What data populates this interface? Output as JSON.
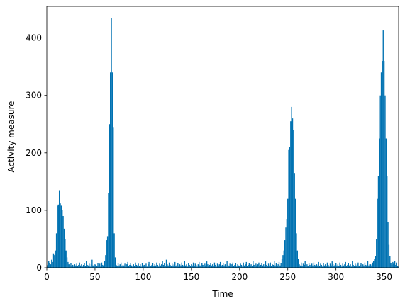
{
  "chart_data": {
    "type": "bar",
    "xlabel": "Time",
    "ylabel": "Activity measure",
    "color": "#0072b2",
    "xlim": [
      0,
      365
    ],
    "ylim": [
      0,
      455
    ],
    "xticks": [
      0,
      50,
      100,
      150,
      200,
      250,
      300,
      350
    ],
    "yticks": [
      0,
      100,
      200,
      300,
      400
    ],
    "x": [
      0,
      1,
      2,
      3,
      4,
      5,
      6,
      7,
      8,
      9,
      10,
      11,
      12,
      13,
      14,
      15,
      16,
      17,
      18,
      19,
      20,
      21,
      22,
      23,
      24,
      25,
      26,
      27,
      28,
      29,
      30,
      31,
      32,
      33,
      34,
      35,
      36,
      37,
      38,
      39,
      40,
      41,
      42,
      43,
      44,
      45,
      46,
      47,
      48,
      49,
      50,
      51,
      52,
      53,
      54,
      55,
      56,
      57,
      58,
      59,
      60,
      61,
      62,
      63,
      64,
      65,
      66,
      67,
      68,
      69,
      70,
      71,
      72,
      73,
      74,
      75,
      76,
      77,
      78,
      79,
      80,
      81,
      82,
      83,
      84,
      85,
      86,
      87,
      88,
      89,
      90,
      91,
      92,
      93,
      94,
      95,
      96,
      97,
      98,
      99,
      100,
      101,
      102,
      103,
      104,
      105,
      106,
      107,
      108,
      109,
      110,
      111,
      112,
      113,
      114,
      115,
      116,
      117,
      118,
      119,
      120,
      121,
      122,
      123,
      124,
      125,
      126,
      127,
      128,
      129,
      130,
      131,
      132,
      133,
      134,
      135,
      136,
      137,
      138,
      139,
      140,
      141,
      142,
      143,
      144,
      145,
      146,
      147,
      148,
      149,
      150,
      151,
      152,
      153,
      154,
      155,
      156,
      157,
      158,
      159,
      160,
      161,
      162,
      163,
      164,
      165,
      166,
      167,
      168,
      169,
      170,
      171,
      172,
      173,
      174,
      175,
      176,
      177,
      178,
      179,
      180,
      181,
      182,
      183,
      184,
      185,
      186,
      187,
      188,
      189,
      190,
      191,
      192,
      193,
      194,
      195,
      196,
      197,
      198,
      199,
      200,
      201,
      202,
      203,
      204,
      205,
      206,
      207,
      208,
      209,
      210,
      211,
      212,
      213,
      214,
      215,
      216,
      217,
      218,
      219,
      220,
      221,
      222,
      223,
      224,
      225,
      226,
      227,
      228,
      229,
      230,
      231,
      232,
      233,
      234,
      235,
      236,
      237,
      238,
      239,
      240,
      241,
      242,
      243,
      244,
      245,
      246,
      247,
      248,
      249,
      250,
      251,
      252,
      253,
      254,
      255,
      256,
      257,
      258,
      259,
      260,
      261,
      262,
      263,
      264,
      265,
      266,
      267,
      268,
      269,
      270,
      271,
      272,
      273,
      274,
      275,
      276,
      277,
      278,
      279,
      280,
      281,
      282,
      283,
      284,
      285,
      286,
      287,
      288,
      289,
      290,
      291,
      292,
      293,
      294,
      295,
      296,
      297,
      298,
      299,
      300,
      301,
      302,
      303,
      304,
      305,
      306,
      307,
      308,
      309,
      310,
      311,
      312,
      313,
      314,
      315,
      316,
      317,
      318,
      319,
      320,
      321,
      322,
      323,
      324,
      325,
      326,
      327,
      328,
      329,
      330,
      331,
      332,
      333,
      334,
      335,
      336,
      337,
      338,
      339,
      340,
      341,
      342,
      343,
      344,
      345,
      346,
      347,
      348,
      349,
      350,
      351,
      352,
      353,
      354,
      355,
      356,
      357,
      358,
      359,
      360,
      361,
      362,
      363,
      364
    ],
    "values": [
      3,
      5,
      12,
      8,
      6,
      14,
      10,
      25,
      22,
      30,
      60,
      108,
      110,
      135,
      112,
      108,
      100,
      90,
      68,
      50,
      30,
      18,
      10,
      6,
      4,
      8,
      3,
      5,
      2,
      6,
      4,
      7,
      3,
      5,
      9,
      4,
      6,
      2,
      5,
      8,
      3,
      12,
      5,
      4,
      7,
      2,
      6,
      14,
      4,
      3,
      6,
      5,
      3,
      8,
      4,
      7,
      2,
      9,
      5,
      3,
      12,
      22,
      48,
      55,
      130,
      250,
      340,
      435,
      340,
      245,
      60,
      18,
      5,
      3,
      8,
      4,
      6,
      9,
      3,
      5,
      4,
      7,
      2,
      6,
      10,
      3,
      5,
      8,
      4,
      2,
      6,
      3,
      9,
      5,
      4,
      7,
      3,
      6,
      2,
      8,
      4,
      5,
      3,
      7,
      2,
      6,
      10,
      4,
      3,
      5,
      8,
      3,
      6,
      4,
      9,
      5,
      2,
      7,
      4,
      6,
      12,
      5,
      8,
      3,
      14,
      6,
      4,
      9,
      5,
      3,
      7,
      4,
      6,
      10,
      3,
      5,
      8,
      2,
      6,
      4,
      9,
      5,
      3,
      12,
      4,
      6,
      2,
      8,
      5,
      3,
      6,
      4,
      9,
      3,
      7,
      5,
      2,
      6,
      10,
      4,
      3,
      8,
      5,
      2,
      7,
      4,
      11,
      6,
      3,
      5,
      8,
      4,
      6,
      3,
      9,
      5,
      2,
      7,
      4,
      6,
      10,
      3,
      5,
      8,
      4,
      6,
      2,
      12,
      5,
      3,
      7,
      4,
      6,
      9,
      3,
      5,
      8,
      2,
      6,
      4,
      3,
      7,
      5,
      2,
      9,
      4,
      6,
      10,
      3,
      5,
      8,
      4,
      6,
      3,
      12,
      5,
      2,
      7,
      4,
      6,
      9,
      3,
      5,
      8,
      4,
      6,
      2,
      11,
      5,
      3,
      7,
      4,
      9,
      3,
      6,
      5,
      12,
      4,
      8,
      3,
      6,
      10,
      4,
      8,
      15,
      22,
      30,
      48,
      70,
      85,
      120,
      205,
      210,
      255,
      280,
      260,
      240,
      165,
      120,
      60,
      30,
      15,
      6,
      4,
      9,
      3,
      7,
      5,
      12,
      4,
      6,
      3,
      8,
      5,
      2,
      7,
      4,
      9,
      5,
      3,
      6,
      4,
      10,
      3,
      7,
      5,
      2,
      8,
      4,
      6,
      3,
      9,
      5,
      2,
      7,
      4,
      11,
      6,
      3,
      5,
      8,
      4,
      6,
      3,
      9,
      5,
      2,
      7,
      4,
      6,
      10,
      3,
      5,
      8,
      4,
      6,
      2,
      12,
      5,
      3,
      7,
      4,
      6,
      9,
      3,
      5,
      8,
      2,
      6,
      4,
      9,
      5,
      3,
      12,
      4,
      6,
      6,
      4,
      9,
      12,
      15,
      20,
      50,
      120,
      160,
      225,
      300,
      340,
      360,
      413,
      360,
      300,
      225,
      160,
      80,
      40,
      20,
      8,
      5,
      10,
      7,
      12,
      5,
      9,
      3
    ]
  }
}
